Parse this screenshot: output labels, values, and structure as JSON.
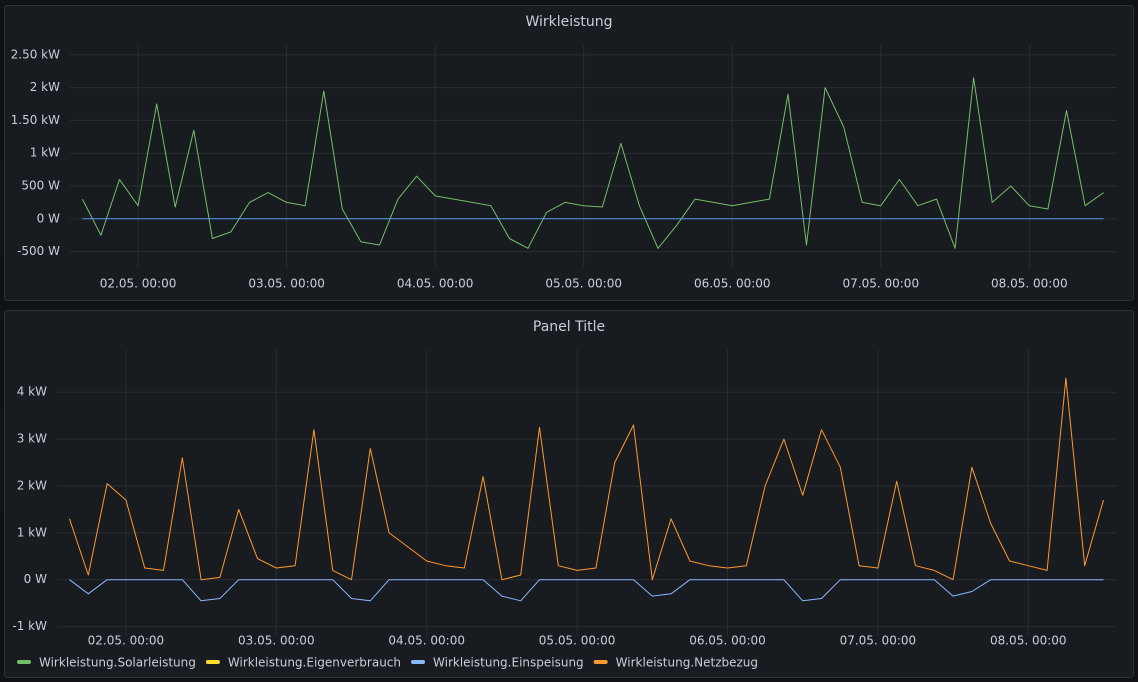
{
  "chart_data": [
    {
      "type": "line",
      "title": "Wirkleistung",
      "x": [
        "01.05. 15:00",
        "01.05. 18:00",
        "01.05. 21:00",
        "02.05. 00:00",
        "02.05. 03:00",
        "02.05. 06:00",
        "02.05. 09:00",
        "02.05. 12:00",
        "02.05. 15:00",
        "02.05. 18:00",
        "02.05. 21:00",
        "03.05. 00:00",
        "03.05. 03:00",
        "03.05. 06:00",
        "03.05. 09:00",
        "03.05. 12:00",
        "03.05. 15:00",
        "03.05. 18:00",
        "03.05. 21:00",
        "04.05. 00:00",
        "04.05. 03:00",
        "04.05. 06:00",
        "04.05. 09:00",
        "04.05. 12:00",
        "04.05. 15:00",
        "04.05. 18:00",
        "04.05. 21:00",
        "05.05. 00:00",
        "05.05. 03:00",
        "05.05. 06:00",
        "05.05. 09:00",
        "05.05. 12:00",
        "05.05. 15:00",
        "05.05. 18:00",
        "05.05. 21:00",
        "06.05. 00:00",
        "06.05. 03:00",
        "06.05. 06:00",
        "06.05. 09:00",
        "06.05. 12:00",
        "06.05. 15:00",
        "06.05. 18:00",
        "06.05. 21:00",
        "07.05. 00:00",
        "07.05. 03:00",
        "07.05. 06:00",
        "07.05. 09:00",
        "07.05. 12:00",
        "07.05. 15:00",
        "07.05. 18:00",
        "07.05. 21:00",
        "08.05. 00:00",
        "08.05. 03:00",
        "08.05. 06:00",
        "08.05. 09:00",
        "08.05. 12:00"
      ],
      "series": [
        {
          "color": "#73bf69",
          "values": [
            300,
            -250,
            600,
            200,
            1750,
            180,
            1350,
            -300,
            -200,
            250,
            400,
            250,
            200,
            1950,
            150,
            -350,
            -400,
            300,
            650,
            350,
            300,
            250,
            200,
            -300,
            -450,
            100,
            250,
            200,
            180,
            1150,
            200,
            -450,
            -100,
            300,
            250,
            200,
            250,
            300,
            1900,
            -400,
            2000,
            1400,
            250,
            200,
            600,
            200,
            300,
            -450,
            2150,
            250,
            500,
            200,
            150,
            1650,
            200,
            400
          ]
        },
        {
          "color": "#5794f2",
          "values": [
            0,
            0,
            0,
            0,
            0,
            0,
            0,
            0,
            0,
            0,
            0,
            0,
            0,
            0,
            0,
            0,
            0,
            0,
            0,
            0,
            0,
            0,
            0,
            0,
            0,
            0,
            0,
            0,
            0,
            0,
            0,
            0,
            0,
            0,
            0,
            0,
            0,
            0,
            0,
            0,
            0,
            0,
            0,
            0,
            0,
            0,
            0,
            0,
            0,
            0,
            0,
            0,
            0,
            0,
            0,
            0
          ]
        }
      ],
      "xlim": [
        "01.05. 13:00",
        "08.05. 14:00"
      ],
      "xticks": [
        "02.05. 00:00",
        "03.05. 00:00",
        "04.05. 00:00",
        "05.05. 00:00",
        "06.05. 00:00",
        "07.05. 00:00",
        "08.05. 00:00"
      ],
      "ylim": [
        -750,
        2650
      ],
      "yticks": [
        {
          "value": -500,
          "label": "-500 W"
        },
        {
          "value": 0,
          "label": "0 W"
        },
        {
          "value": 500,
          "label": "500 W"
        },
        {
          "value": 1000,
          "label": "1 kW"
        },
        {
          "value": 1500,
          "label": "1.50 kW"
        },
        {
          "value": 2000,
          "label": "2 kW"
        },
        {
          "value": 2500,
          "label": "2.50 kW"
        }
      ],
      "grid": true
    },
    {
      "type": "line",
      "title": "Panel Title",
      "x": [
        "01.05. 15:00",
        "01.05. 18:00",
        "01.05. 21:00",
        "02.05. 00:00",
        "02.05. 03:00",
        "02.05. 06:00",
        "02.05. 09:00",
        "02.05. 12:00",
        "02.05. 15:00",
        "02.05. 18:00",
        "02.05. 21:00",
        "03.05. 00:00",
        "03.05. 03:00",
        "03.05. 06:00",
        "03.05. 09:00",
        "03.05. 12:00",
        "03.05. 15:00",
        "03.05. 18:00",
        "03.05. 21:00",
        "04.05. 00:00",
        "04.05. 03:00",
        "04.05. 06:00",
        "04.05. 09:00",
        "04.05. 12:00",
        "04.05. 15:00",
        "04.05. 18:00",
        "04.05. 21:00",
        "05.05. 00:00",
        "05.05. 03:00",
        "05.05. 06:00",
        "05.05. 09:00",
        "05.05. 12:00",
        "05.05. 15:00",
        "05.05. 18:00",
        "05.05. 21:00",
        "06.05. 00:00",
        "06.05. 03:00",
        "06.05. 06:00",
        "06.05. 09:00",
        "06.05. 12:00",
        "06.05. 15:00",
        "06.05. 18:00",
        "06.05. 21:00",
        "07.05. 00:00",
        "07.05. 03:00",
        "07.05. 06:00",
        "07.05. 09:00",
        "07.05. 12:00",
        "07.05. 15:00",
        "07.05. 18:00",
        "07.05. 21:00",
        "08.05. 00:00",
        "08.05. 03:00",
        "08.05. 06:00",
        "08.05. 09:00",
        "08.05. 12:00"
      ],
      "series": [
        {
          "name": "Wirkleistung.Solarleistung",
          "color": "#73bf69",
          "values": [
            null,
            null,
            null,
            null,
            null,
            null,
            null,
            null,
            null,
            null,
            null,
            null,
            null,
            null,
            null,
            null,
            null,
            null,
            null,
            null,
            null,
            null,
            null,
            null,
            null,
            null,
            null,
            null,
            null,
            null,
            null,
            null,
            null,
            null,
            null,
            null,
            null,
            null,
            null,
            null,
            null,
            null,
            null,
            null,
            null,
            null,
            null,
            null,
            null,
            null,
            null,
            null,
            null,
            null,
            null,
            null
          ]
        },
        {
          "name": "Wirkleistung.Eigenverbrauch",
          "color": "#fade2a",
          "values": [
            null,
            null,
            null,
            null,
            null,
            null,
            null,
            null,
            null,
            null,
            null,
            null,
            null,
            null,
            null,
            null,
            null,
            null,
            null,
            null,
            null,
            null,
            null,
            null,
            null,
            null,
            null,
            null,
            null,
            null,
            null,
            null,
            null,
            null,
            null,
            null,
            null,
            null,
            null,
            null,
            null,
            null,
            null,
            null,
            null,
            null,
            null,
            null,
            null,
            null,
            null,
            null,
            null,
            null,
            null,
            null
          ]
        },
        {
          "name": "Wirkleistung.Einspeisung",
          "color": "#8ab8ff",
          "values": [
            0,
            -300,
            0,
            0,
            0,
            0,
            0,
            -450,
            -400,
            0,
            0,
            0,
            0,
            0,
            0,
            -400,
            -450,
            0,
            0,
            0,
            0,
            0,
            0,
            -350,
            -450,
            0,
            0,
            0,
            0,
            0,
            0,
            -350,
            -300,
            0,
            0,
            0,
            0,
            0,
            0,
            -450,
            -400,
            0,
            0,
            0,
            0,
            0,
            0,
            -350,
            -250,
            0,
            0,
            0,
            0,
            0,
            0,
            0
          ]
        },
        {
          "name": "Wirkleistung.Netzbezug",
          "color": "#ff9830",
          "values": [
            1300,
            100,
            2050,
            1700,
            250,
            200,
            2600,
            0,
            50,
            1500,
            450,
            250,
            300,
            3200,
            200,
            0,
            2800,
            1000,
            700,
            400,
            300,
            250,
            2200,
            0,
            100,
            3250,
            300,
            200,
            250,
            2500,
            3300,
            0,
            1300,
            400,
            300,
            250,
            300,
            2000,
            3000,
            1800,
            3200,
            2400,
            300,
            250,
            2100,
            300,
            200,
            0,
            2400,
            1200,
            400,
            300,
            200,
            4300,
            300,
            1700
          ]
        }
      ],
      "xlim": [
        "01.05. 13:00",
        "08.05. 14:00"
      ],
      "xticks": [
        "02.05. 00:00",
        "03.05. 00:00",
        "04.05. 00:00",
        "05.05. 00:00",
        "06.05. 00:00",
        "07.05. 00:00",
        "08.05. 00:00"
      ],
      "ylim": [
        -1200,
        4900
      ],
      "yticks": [
        {
          "value": -1000,
          "label": "-1 kW"
        },
        {
          "value": 0,
          "label": "0 W"
        },
        {
          "value": 1000,
          "label": "1 kW"
        },
        {
          "value": 2000,
          "label": "2 kW"
        },
        {
          "value": 3000,
          "label": "3 kW"
        },
        {
          "value": 4000,
          "label": "4 kW"
        }
      ],
      "grid": true,
      "legend": "bottom"
    }
  ]
}
